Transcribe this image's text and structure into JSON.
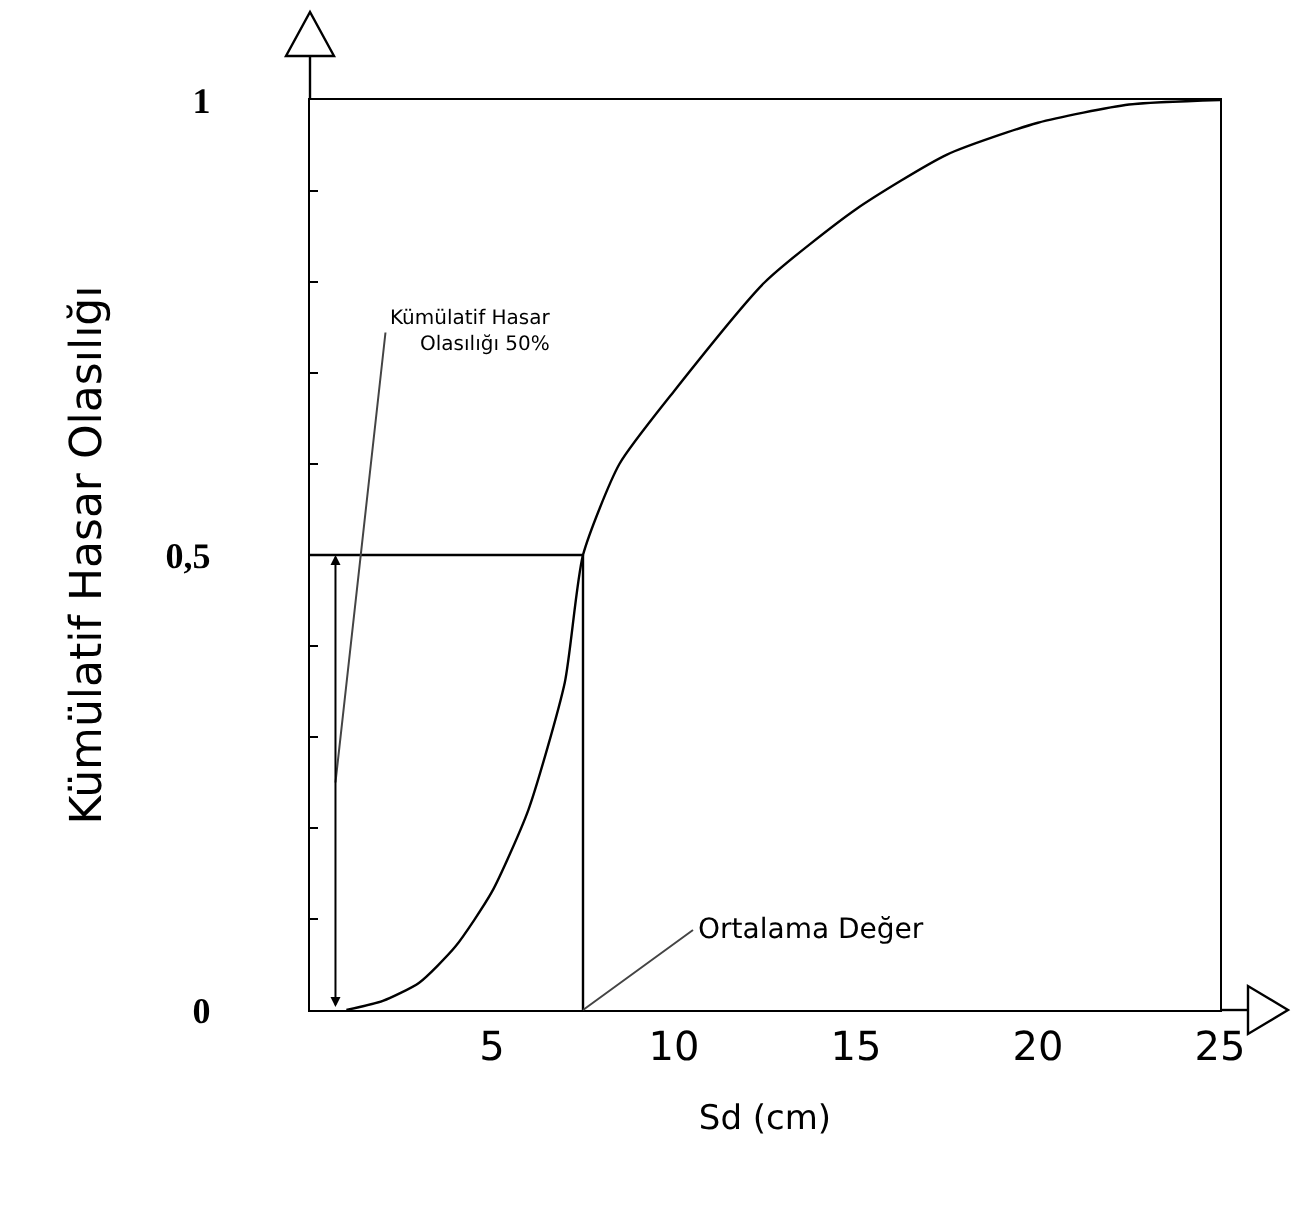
{
  "chart_data": {
    "type": "line",
    "xlabel": "Sd (cm)",
    "ylabel": "Kümülatif Hasar Olasılığı",
    "x": [
      1,
      2,
      3,
      4,
      5,
      6,
      7,
      7.5,
      8.5,
      10,
      12.5,
      15,
      17.5,
      20,
      22.5,
      25
    ],
    "series": [
      {
        "color": "#000000",
        "values": [
          0,
          0.01,
          0.03,
          0.07,
          0.13,
          0.22,
          0.36,
          0.5,
          0.6,
          0.68,
          0.8,
          0.88,
          0.94,
          0.975,
          0.995,
          1
        ]
      }
    ],
    "xlim": [
      0,
      25
    ],
    "ylim": [
      0,
      1
    ],
    "xticks": [
      5,
      10,
      15,
      20,
      25
    ],
    "yticks": [
      0,
      {
        "value": 0.1,
        "label": null
      },
      {
        "value": 0.2,
        "label": null
      },
      {
        "value": 0.3,
        "label": null
      },
      {
        "value": 0.4,
        "label": null
      },
      {
        "value": 0.5,
        "label": "0,5"
      },
      {
        "value": 0.6,
        "label": null
      },
      {
        "value": 0.7,
        "label": null
      },
      {
        "value": 0.8,
        "label": null
      },
      {
        "value": 0.9,
        "label": null
      },
      1
    ],
    "ref_lines": [
      {
        "axis": "y",
        "value": 0.5,
        "color": "#000000"
      },
      {
        "axis": "x",
        "value": 7.5,
        "color": "#000000"
      }
    ],
    "annotations": [
      "Kümülatif Hasar\nOlasılığı 50%",
      {
        "text": "Ortalama Değer",
        "x": 7.5,
        "y": 0
      }
    ],
    "grid": false,
    "marker": "none",
    "line_style": "solid"
  }
}
